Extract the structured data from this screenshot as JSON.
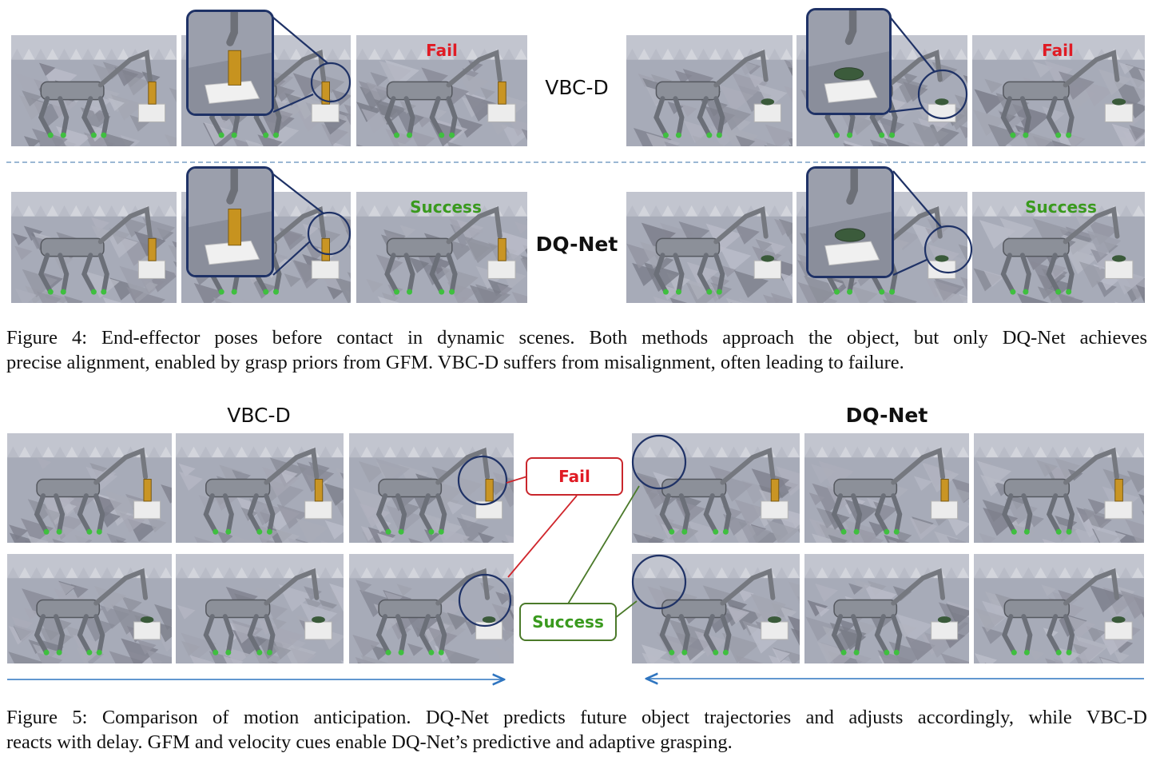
{
  "figure4": {
    "row_labels": {
      "top": "VBC-D",
      "bottom": "DQ-Net"
    },
    "outcomes": {
      "fail": "Fail",
      "success": "Success"
    },
    "caption_lines": [
      "Figure 4: End-effector poses before contact in dynamic scenes. Both methods approach the object, but only DQ-Net achieves",
      "precise alignment, enabled by grasp priors from GFM. VBC-D suffers from misalignment, often leading to failure."
    ]
  },
  "figure5": {
    "column_labels": {
      "left": "VBC-D",
      "right": "DQ-Net"
    },
    "callouts": {
      "fail": "Fail",
      "success": "Success"
    },
    "caption_lines": [
      "Figure 5: Comparison of motion anticipation. DQ-Net predicts future object trajectories and adjusts accordingly, while VBC-D",
      "reacts with delay. GFM and velocity cues enable DQ-Net’s predictive and adaptive grasping."
    ]
  },
  "colors": {
    "fail": "#e01b24",
    "success": "#3a9a1e",
    "callout_fail_border": "#c9262c",
    "callout_success_border": "#4b7a2a",
    "highlight_circle": "#1f3266",
    "timeline_arrow": "#2f75c0",
    "divider": "#9bb7d4"
  }
}
